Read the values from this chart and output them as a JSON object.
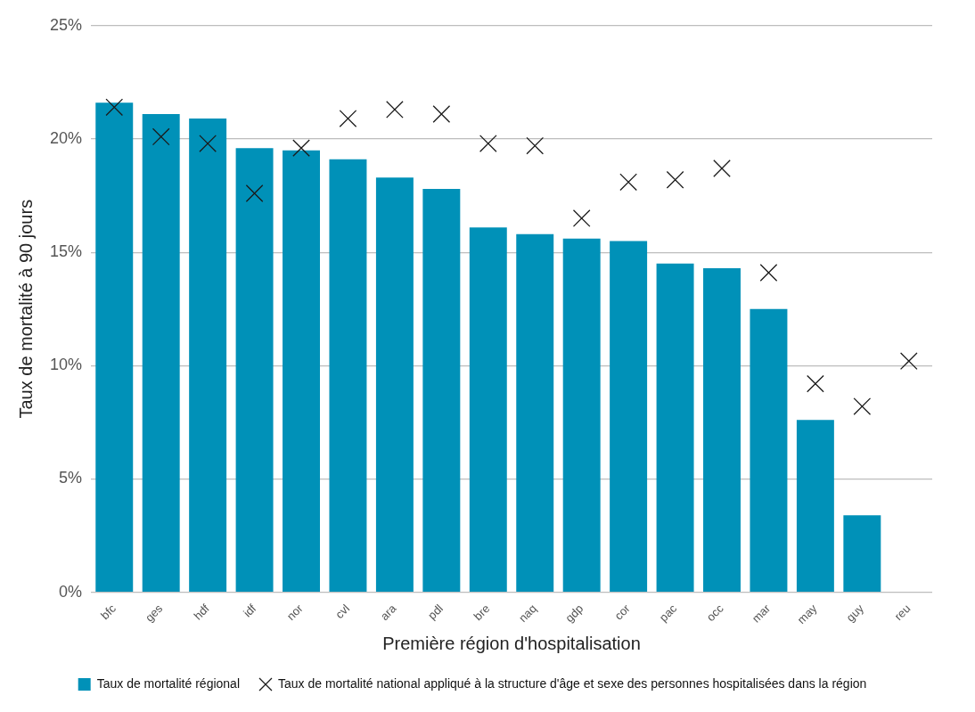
{
  "chart_data": {
    "type": "bar",
    "xlabel": "Première région d'hospitalisation",
    "ylabel": "Taux de mortalité à 90 jours",
    "categories": [
      "bfc",
      "ges",
      "hdf",
      "idf",
      "nor",
      "cvl",
      "ara",
      "pdl",
      "bre",
      "naq",
      "gdp",
      "cor",
      "pac",
      "occ",
      "mar",
      "may",
      "guy",
      "reu"
    ],
    "series": [
      {
        "name": "Taux de mortalité régional",
        "color": "#0091b8",
        "values": [
          21.6,
          21.1,
          20.9,
          19.6,
          19.5,
          19.1,
          18.3,
          17.8,
          16.1,
          15.8,
          15.6,
          15.5,
          14.5,
          14.3,
          12.5,
          7.6,
          3.4,
          null
        ]
      },
      {
        "name": "Taux de mortalité national appliqué à la structure d'âge et sexe des personnes hospitalisées dans la région",
        "type": "scatter",
        "color": "#1a1a1a",
        "marker": "cross",
        "x": [
          "bfc",
          "ges",
          "hdf",
          "idf",
          "nor",
          "cvl",
          "ara",
          "pdl",
          "bre",
          "naq",
          "gdp",
          "cor",
          "pac",
          "occ",
          "mar",
          "may",
          "guy",
          "reu"
        ],
        "values": [
          21.4,
          20.1,
          19.8,
          17.6,
          19.6,
          20.9,
          21.3,
          21.1,
          19.8,
          19.7,
          16.5,
          18.1,
          18.2,
          18.7,
          14.1,
          9.2,
          8.2,
          10.2
        ]
      }
    ],
    "ylim": [
      0,
      25
    ],
    "yticks": [
      {
        "value": 0,
        "label": "0%"
      },
      {
        "value": 5,
        "label": "5%"
      },
      {
        "value": 10,
        "label": "10%"
      },
      {
        "value": 15,
        "label": "15%"
      },
      {
        "value": 20,
        "label": "20%"
      },
      {
        "value": 25,
        "label": "25%"
      }
    ],
    "grid": "y",
    "legend": "bottom"
  }
}
